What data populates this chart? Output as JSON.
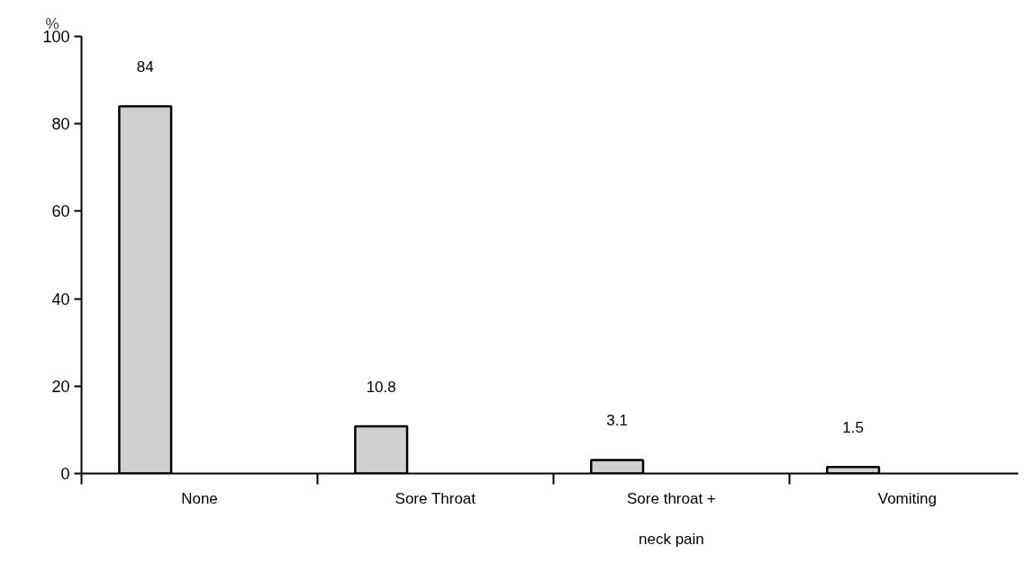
{
  "chart_data": {
    "type": "bar",
    "ylabel": "%",
    "categories": [
      "None",
      "Sore Throat",
      "Sore throat + neck pain",
      "Vomiting"
    ],
    "values": [
      84,
      10.8,
      3.1,
      1.5
    ],
    "color": "#d0d0d0",
    "ylim": [
      0,
      100
    ],
    "yticks": [
      0,
      20,
      40,
      60,
      80,
      100
    ],
    "grid": false,
    "data_labels": true
  }
}
